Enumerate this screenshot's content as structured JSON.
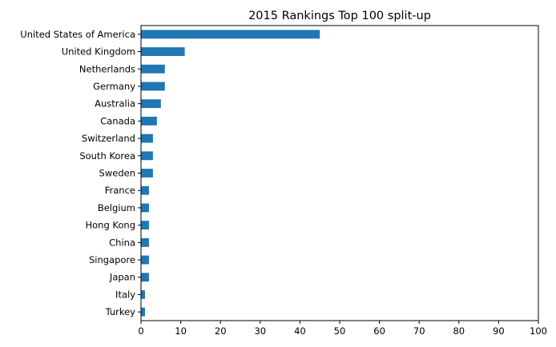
{
  "chart_data": {
    "type": "bar",
    "orientation": "horizontal",
    "title": "2015 Rankings Top 100 split-up",
    "xlabel": "",
    "ylabel": "",
    "categories": [
      "United States of America",
      "United Kingdom",
      "Netherlands",
      "Germany",
      "Australia",
      "Canada",
      "Switzerland",
      "South Korea",
      "Sweden",
      "France",
      "Belgium",
      "Hong Kong",
      "China",
      "Singapore",
      "Japan",
      "Italy",
      "Turkey"
    ],
    "values": [
      45,
      11,
      6,
      6,
      5,
      4,
      3,
      3,
      3,
      2,
      2,
      2,
      2,
      2,
      2,
      1,
      1
    ],
    "xlim": [
      0,
      100
    ],
    "xticks": [
      0,
      10,
      20,
      30,
      40,
      50,
      60,
      70,
      80,
      90,
      100
    ],
    "grid": false,
    "bar_color": "#1f77b4"
  }
}
